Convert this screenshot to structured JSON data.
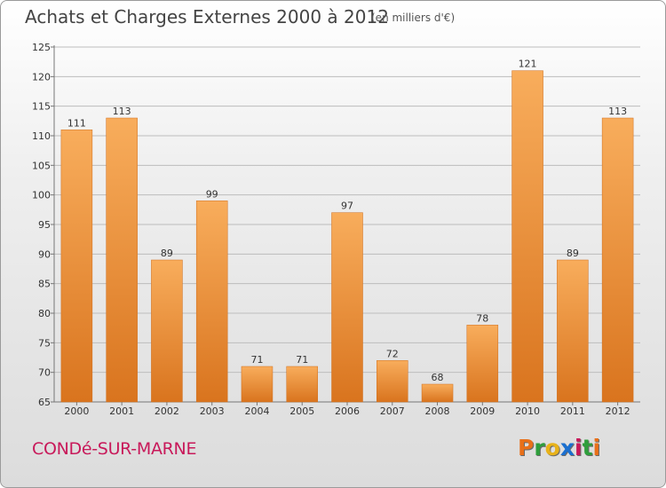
{
  "title": "Achats et Charges Externes 2000 à 2012",
  "unit": "(en milliers d'€)",
  "place": "CONDé-SUR-MARNE",
  "logo": [
    "P",
    "r",
    "o",
    "x",
    "i",
    "t",
    "i"
  ],
  "logo_colors": [
    "#e8701a",
    "#2e9e3c",
    "#e8b21a",
    "#1a6fd0",
    "#c8195a",
    "#2e9e3c",
    "#e8701a"
  ],
  "colors": {
    "bar_light": "#f8ad5c",
    "bar_dark": "#d9741e",
    "grid": "#bdbdbd"
  },
  "chart_data": {
    "type": "bar",
    "categories": [
      "2000",
      "2001",
      "2002",
      "2003",
      "2004",
      "2005",
      "2006",
      "2007",
      "2008",
      "2009",
      "2010",
      "2011",
      "2012"
    ],
    "values": [
      111,
      113,
      89,
      99,
      71,
      71,
      97,
      72,
      68,
      78,
      121,
      89,
      113
    ],
    "ylim": [
      65,
      125
    ],
    "yticks": [
      65,
      70,
      75,
      80,
      85,
      90,
      95,
      100,
      105,
      110,
      115,
      120,
      125
    ],
    "grid": true
  }
}
